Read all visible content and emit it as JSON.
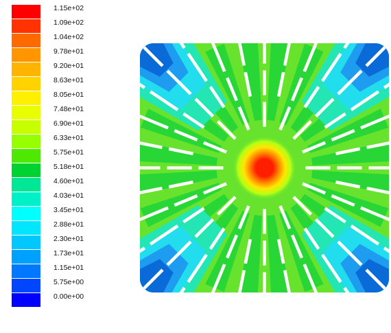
{
  "colorbar": {
    "labels": [
      "1.15e+02",
      "1.09e+02",
      "1.04e+02",
      "9.78e+01",
      "9.20e+01",
      "8.63e+01",
      "8.05e+01",
      "7.48e+01",
      "6.90e+01",
      "6.33e+01",
      "5.75e+01",
      "5.18e+01",
      "4.60e+01",
      "4.03e+01",
      "3.45e+01",
      "2.88e+01",
      "2.30e+01",
      "1.73e+01",
      "1.15e+01",
      "5.75e+00",
      "0.00e+00"
    ],
    "colors": [
      "#ff0000",
      "#ff3200",
      "#ff6a00",
      "#ff9600",
      "#ffb400",
      "#ffd200",
      "#fff000",
      "#e8ff00",
      "#c8ff00",
      "#96ff00",
      "#4fe800",
      "#00d232",
      "#00e896",
      "#00f0c8",
      "#00ffff",
      "#00e6ff",
      "#00c8ff",
      "#00a0ff",
      "#0078ff",
      "#0046ff",
      "#0000ff"
    ]
  },
  "contour": {
    "colors": {
      "background": "#68e32d",
      "bright_green": "#28d636",
      "teal": "#23e6b4",
      "cyan": "#21ddee",
      "blue": "#0a6bd8",
      "light_blue": "#1e9cf0",
      "slot": "#ffffff",
      "hot_center": "#ff1e00",
      "hot_orange": "#ff8c00",
      "hot_yellow": "#ffe600"
    }
  }
}
